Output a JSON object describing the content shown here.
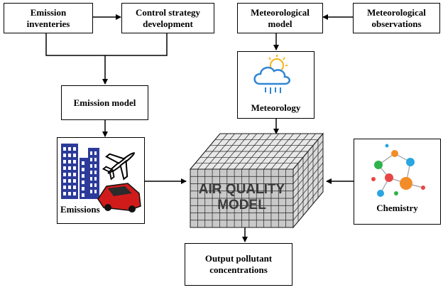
{
  "boxes": {
    "emission_inventeries": "Emission\ninventeries",
    "control_strategy": "Control strategy\ndevelopment",
    "meteorological_model": "Meteorological\nmodel",
    "meteorological_observations": "Meteorological\nobservations",
    "emission_model": "Emission model",
    "meteorology": "Meteorology",
    "emissions": "Emissions",
    "chemistry": "Chemistry",
    "output": "Output pollutant\nconcentrations"
  },
  "center": {
    "line1": "AIR QUALITY",
    "line2": "MODEL"
  },
  "icons": [
    "cloud-sun-rain-icon",
    "buildings-icon",
    "airplane-icon",
    "car-icon",
    "molecules-icon",
    "grid-cube-icon"
  ],
  "colors": {
    "building_blue": "#2c3b9a",
    "cloud_blue": "#2f86d4",
    "sun_yellow": "#f2b51c",
    "car_red": "#d11b1b",
    "grid_fill": "#c9c9c9"
  }
}
